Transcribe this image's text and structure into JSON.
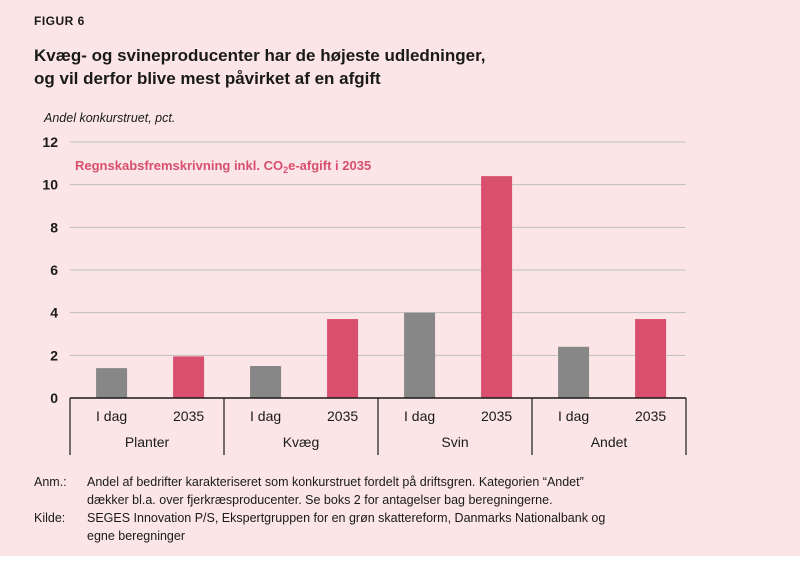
{
  "figure_label": "FIGUR 6",
  "title_lines": [
    "Kvæg- og svineproducenter har de højeste udledninger,",
    "og vil derfor blive mest påvirket af en afgift"
  ],
  "colors": {
    "background": "#fbe5e6",
    "i_dag": "#878787",
    "y2035": "#d94f6e",
    "annotation": "#d94f6e",
    "grid": "#bfbfbf"
  },
  "chart_data": {
    "type": "bar",
    "ylabel": "Andel konkurstruet, pct.",
    "ylim": [
      0,
      12
    ],
    "yticks": [
      0,
      2,
      4,
      6,
      8,
      10,
      12
    ],
    "grid": true,
    "annotation": {
      "prefix": "Regnskabsfremskrivning inkl. CO",
      "subscript": "2",
      "suffix": "e-afgift i 2035"
    },
    "groups": [
      "Planter",
      "Kvæg",
      "Svin",
      "Andet"
    ],
    "subcategories": [
      "I dag",
      "2035"
    ],
    "series": [
      {
        "values": [
          1.4,
          1.5,
          4.0,
          2.4
        ]
      },
      {
        "values": [
          1.95,
          3.7,
          10.4,
          3.7
        ]
      }
    ]
  },
  "notes": [
    {
      "key": "Anm.:",
      "lines": [
        "Andel af bedrifter karakteriseret som konkurstruet fordelt på driftsgren. Kategorien “Andet”",
        "dækker bl.a. over fjerkræsproducenter. Se boks 2 for antagelser bag beregningerne."
      ]
    },
    {
      "key": "Kilde:",
      "lines": [
        "SEGES Innovation P/S, Ekspertgruppen for en grøn skattereform, Danmarks Nationalbank og",
        "egne beregninger"
      ]
    }
  ]
}
